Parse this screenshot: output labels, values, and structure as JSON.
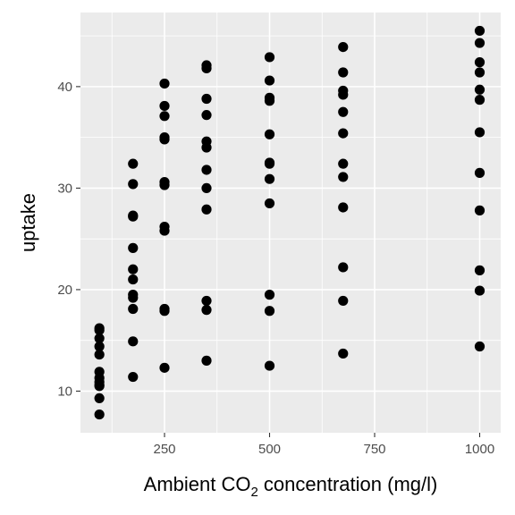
{
  "chart_data": {
    "type": "scatter",
    "xlabel_parts": {
      "pre": "Ambient CO",
      "sub": "2",
      "post": " concentration (mg/l)"
    },
    "ylabel": "uptake",
    "xlim": [
      50,
      1050
    ],
    "ylim": [
      5.9,
      47.3
    ],
    "x_ticks": [
      250,
      500,
      750,
      1000
    ],
    "y_ticks": [
      10,
      20,
      30,
      40
    ],
    "x_tick_labels": [
      "250",
      "500",
      "750",
      "1000"
    ],
    "y_tick_labels": [
      "10",
      "20",
      "30",
      "40"
    ],
    "grid": true,
    "point_color": "#000000",
    "panel_color": "#ebebeb",
    "points": [
      {
        "x": 95,
        "y": 16.0
      },
      {
        "x": 95,
        "y": 15.2
      },
      {
        "x": 95,
        "y": 14.4
      },
      {
        "x": 95,
        "y": 13.6
      },
      {
        "x": 95,
        "y": 11.9
      },
      {
        "x": 95,
        "y": 11.3
      },
      {
        "x": 95,
        "y": 10.6
      },
      {
        "x": 95,
        "y": 10.5
      },
      {
        "x": 95,
        "y": 9.3
      },
      {
        "x": 95,
        "y": 7.7
      },
      {
        "x": 95,
        "y": 16.2
      },
      {
        "x": 95,
        "y": 10.9
      },
      {
        "x": 175,
        "y": 32.4
      },
      {
        "x": 175,
        "y": 30.4
      },
      {
        "x": 175,
        "y": 27.3
      },
      {
        "x": 175,
        "y": 27.2
      },
      {
        "x": 175,
        "y": 24.1
      },
      {
        "x": 175,
        "y": 22.0
      },
      {
        "x": 175,
        "y": 21.0
      },
      {
        "x": 175,
        "y": 19.5
      },
      {
        "x": 175,
        "y": 19.2
      },
      {
        "x": 175,
        "y": 18.1
      },
      {
        "x": 175,
        "y": 14.9
      },
      {
        "x": 175,
        "y": 11.4
      },
      {
        "x": 250,
        "y": 40.3
      },
      {
        "x": 250,
        "y": 38.1
      },
      {
        "x": 250,
        "y": 37.1
      },
      {
        "x": 250,
        "y": 35.0
      },
      {
        "x": 250,
        "y": 34.8
      },
      {
        "x": 250,
        "y": 30.6
      },
      {
        "x": 250,
        "y": 30.3
      },
      {
        "x": 250,
        "y": 26.2
      },
      {
        "x": 250,
        "y": 25.8
      },
      {
        "x": 250,
        "y": 18.1
      },
      {
        "x": 250,
        "y": 17.9
      },
      {
        "x": 250,
        "y": 12.3
      },
      {
        "x": 350,
        "y": 42.1
      },
      {
        "x": 350,
        "y": 41.8
      },
      {
        "x": 350,
        "y": 38.8
      },
      {
        "x": 350,
        "y": 37.2
      },
      {
        "x": 350,
        "y": 34.6
      },
      {
        "x": 350,
        "y": 34.0
      },
      {
        "x": 350,
        "y": 31.8
      },
      {
        "x": 350,
        "y": 30.0
      },
      {
        "x": 350,
        "y": 27.9
      },
      {
        "x": 350,
        "y": 18.9
      },
      {
        "x": 350,
        "y": 18.0
      },
      {
        "x": 350,
        "y": 13.0
      },
      {
        "x": 500,
        "y": 42.9
      },
      {
        "x": 500,
        "y": 40.6
      },
      {
        "x": 500,
        "y": 38.9
      },
      {
        "x": 500,
        "y": 38.6
      },
      {
        "x": 500,
        "y": 35.3
      },
      {
        "x": 500,
        "y": 32.5
      },
      {
        "x": 500,
        "y": 32.4
      },
      {
        "x": 500,
        "y": 30.9
      },
      {
        "x": 500,
        "y": 28.5
      },
      {
        "x": 500,
        "y": 19.5
      },
      {
        "x": 500,
        "y": 17.9
      },
      {
        "x": 500,
        "y": 12.5
      },
      {
        "x": 675,
        "y": 43.9
      },
      {
        "x": 675,
        "y": 41.4
      },
      {
        "x": 675,
        "y": 39.6
      },
      {
        "x": 675,
        "y": 39.2
      },
      {
        "x": 675,
        "y": 37.5
      },
      {
        "x": 675,
        "y": 35.4
      },
      {
        "x": 675,
        "y": 32.4
      },
      {
        "x": 675,
        "y": 31.1
      },
      {
        "x": 675,
        "y": 28.1
      },
      {
        "x": 675,
        "y": 22.2
      },
      {
        "x": 675,
        "y": 18.9
      },
      {
        "x": 675,
        "y": 13.7
      },
      {
        "x": 1000,
        "y": 45.5
      },
      {
        "x": 1000,
        "y": 44.3
      },
      {
        "x": 1000,
        "y": 42.4
      },
      {
        "x": 1000,
        "y": 41.4
      },
      {
        "x": 1000,
        "y": 39.7
      },
      {
        "x": 1000,
        "y": 38.7
      },
      {
        "x": 1000,
        "y": 35.5
      },
      {
        "x": 1000,
        "y": 31.5
      },
      {
        "x": 1000,
        "y": 27.8
      },
      {
        "x": 1000,
        "y": 21.9
      },
      {
        "x": 1000,
        "y": 19.9
      },
      {
        "x": 1000,
        "y": 14.4
      }
    ]
  }
}
